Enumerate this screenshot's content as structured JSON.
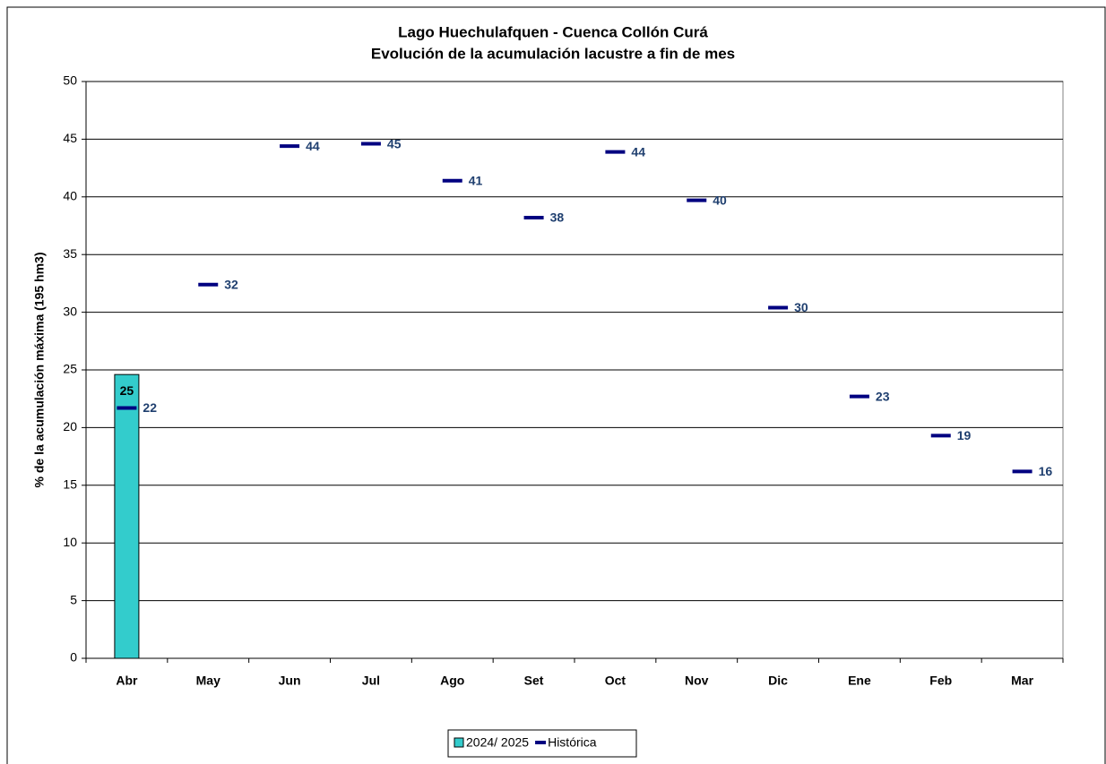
{
  "chart_data": {
    "type": "bar",
    "title": "Lago Huechulafquen - Cuenca Collón Curá",
    "subtitle": "Evolución de la acumulación lacustre a fin de mes",
    "y_label": "% de la acumulación máxima (195 hm3)",
    "categories": [
      "Abr",
      "May",
      "Jun",
      "Jul",
      "Ago",
      "Set",
      "Oct",
      "Nov",
      "Dic",
      "Ene",
      "Feb",
      "Mar"
    ],
    "series": [
      {
        "name": "2024/ 2025",
        "type": "bar",
        "color": "#33CCCC",
        "values": [
          24.6,
          null,
          null,
          null,
          null,
          null,
          null,
          null,
          null,
          null,
          null,
          null
        ],
        "value_labels": [
          "25",
          null,
          null,
          null,
          null,
          null,
          null,
          null,
          null,
          null,
          null,
          null
        ]
      },
      {
        "name": "Histórica",
        "type": "marker",
        "color": "#000080",
        "values": [
          21.7,
          32.4,
          44.4,
          44.6,
          41.4,
          38.2,
          43.9,
          39.7,
          30.4,
          22.7,
          19.3,
          16.2
        ],
        "value_labels": [
          "22",
          "32",
          "44",
          "45",
          "41",
          "38",
          "44",
          "40",
          "30",
          "23",
          "19",
          "16"
        ]
      }
    ],
    "ylim": [
      0,
      50
    ],
    "yticks": [
      0,
      5,
      10,
      15,
      20,
      25,
      30,
      35,
      40,
      45,
      50
    ],
    "grid": true
  }
}
